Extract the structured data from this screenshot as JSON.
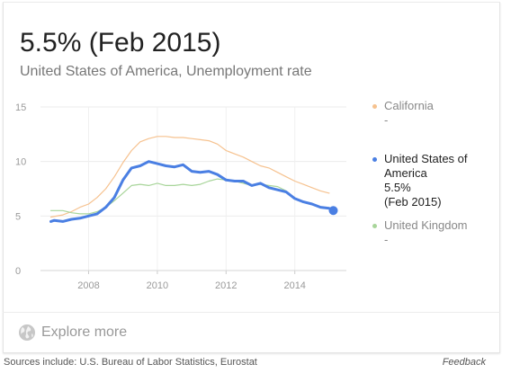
{
  "headline": "5.5% (Feb 2015)",
  "subtitle": "United States of America, Unemployment rate",
  "legend": [
    {
      "name": "California",
      "value": "-",
      "color": "#f6c28f",
      "active": false
    },
    {
      "name": "United States of America",
      "name_lines": [
        "United States of",
        "America"
      ],
      "value": "5.5%",
      "date": "(Feb 2015)",
      "color": "#4a7fe3",
      "active": true
    },
    {
      "name": "United Kingdom",
      "value": "-",
      "color": "#a8d59a",
      "active": false
    }
  ],
  "explore": {
    "label": "Explore more",
    "icon": "globe-icon"
  },
  "footer": {
    "sources": "Sources include: U.S. Bureau of Labor Statistics, Eurostat",
    "feedback": "Feedback"
  },
  "chart_data": {
    "type": "line",
    "xlabel": "",
    "ylabel": "",
    "xlim": [
      2006.6,
      2015.5
    ],
    "ylim": [
      0,
      15
    ],
    "yticks": [
      "15",
      "10",
      "5",
      "0"
    ],
    "xticks": [
      "2008",
      "2010",
      "2012",
      "2014"
    ],
    "grid": true,
    "legend_position": "right",
    "series": [
      {
        "name": "California",
        "color": "#f6c28f",
        "x": [
          2006.9,
          2007.25,
          2007.5,
          2007.75,
          2008.0,
          2008.25,
          2008.5,
          2008.75,
          2009.0,
          2009.25,
          2009.5,
          2009.75,
          2010.0,
          2010.25,
          2010.5,
          2010.75,
          2011.0,
          2011.25,
          2011.5,
          2011.75,
          2012.0,
          2012.25,
          2012.5,
          2012.75,
          2013.0,
          2013.25,
          2013.5,
          2013.75,
          2014.0,
          2014.25,
          2014.5,
          2014.75,
          2015.0
        ],
        "y": [
          4.9,
          5.1,
          5.4,
          5.8,
          6.1,
          6.7,
          7.5,
          8.6,
          9.9,
          11.0,
          11.8,
          12.1,
          12.3,
          12.3,
          12.2,
          12.2,
          12.1,
          12.0,
          11.9,
          11.6,
          11.0,
          10.7,
          10.4,
          10.0,
          9.6,
          9.4,
          9.0,
          8.6,
          8.2,
          7.9,
          7.6,
          7.3,
          7.1
        ]
      },
      {
        "name": "United States of America",
        "color": "#4a7fe3",
        "x": [
          2006.9,
          2007.0,
          2007.25,
          2007.5,
          2007.75,
          2008.0,
          2008.25,
          2008.5,
          2008.75,
          2009.0,
          2009.25,
          2009.5,
          2009.75,
          2010.0,
          2010.25,
          2010.5,
          2010.75,
          2011.0,
          2011.25,
          2011.5,
          2011.75,
          2012.0,
          2012.25,
          2012.5,
          2012.75,
          2013.0,
          2013.25,
          2013.5,
          2013.75,
          2014.0,
          2014.25,
          2014.5,
          2014.75,
          2015.0,
          2015.12
        ],
        "y": [
          4.5,
          4.6,
          4.5,
          4.7,
          4.8,
          5.0,
          5.2,
          5.8,
          6.7,
          8.3,
          9.4,
          9.6,
          10.0,
          9.8,
          9.6,
          9.5,
          9.7,
          9.1,
          9.0,
          9.1,
          8.8,
          8.3,
          8.2,
          8.2,
          7.8,
          8.0,
          7.6,
          7.4,
          7.2,
          6.6,
          6.3,
          6.1,
          5.8,
          5.7,
          5.5
        ]
      },
      {
        "name": "United Kingdom",
        "color": "#a8d59a",
        "x": [
          2006.9,
          2007.25,
          2007.5,
          2007.75,
          2008.0,
          2008.25,
          2008.5,
          2008.75,
          2009.0,
          2009.25,
          2009.5,
          2009.75,
          2010.0,
          2010.25,
          2010.5,
          2010.75,
          2011.0,
          2011.25,
          2011.5,
          2011.75,
          2012.0,
          2012.25,
          2012.5,
          2012.75,
          2013.0,
          2013.25,
          2013.5,
          2013.75
        ],
        "y": [
          5.5,
          5.5,
          5.3,
          5.2,
          5.2,
          5.4,
          5.8,
          6.4,
          7.1,
          7.8,
          7.9,
          7.8,
          8.0,
          7.8,
          7.8,
          7.9,
          7.8,
          7.9,
          8.2,
          8.4,
          8.3,
          8.2,
          8.0,
          7.8,
          7.9,
          7.8,
          7.7,
          7.3
        ]
      }
    ]
  }
}
